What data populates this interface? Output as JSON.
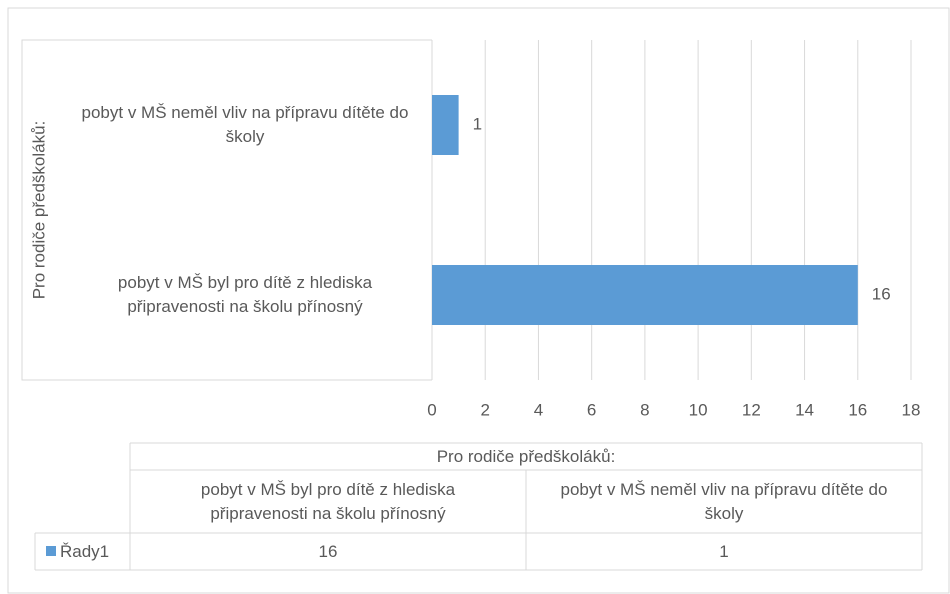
{
  "chart_data": {
    "type": "bar",
    "orientation": "horizontal",
    "y_label": "Pro rodiče předškoláků:",
    "categories": [
      "pobyt v MŠ byl pro dítě z hlediska připravenosti na školu přínosný",
      "pobyt v MŠ neměl vliv na přípravu dítěte do školy"
    ],
    "series": [
      {
        "name": "Řady1",
        "color": "#5b9bd5",
        "values": [
          16,
          1
        ]
      }
    ],
    "xlim": [
      0,
      18
    ],
    "xticks": [
      0,
      2,
      4,
      6,
      8,
      10,
      12,
      14,
      16,
      18
    ],
    "grid": true,
    "data_table": true
  }
}
